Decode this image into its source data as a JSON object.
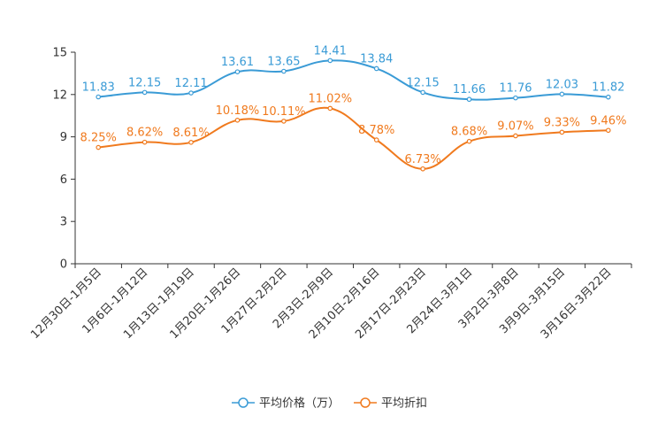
{
  "chart_data": {
    "type": "line",
    "categories": [
      "12月30日-1月5日",
      "1月6日-1月12日",
      "1月13日-1月19日",
      "1月20日-1月26日",
      "1月27日-2月2日",
      "2月3日-2月9日",
      "2月10日-2月16日",
      "2月17日-2月23日",
      "2月24日-3月1日",
      "3月2日-3月8日",
      "3月9日-3月15日",
      "3月16日-3月22日"
    ],
    "yticks": [
      "0",
      "3",
      "6",
      "9",
      "12",
      "15"
    ],
    "ylim": [
      0,
      15
    ],
    "series": [
      {
        "name": "平均价格（万）",
        "color": "#3a9bd6",
        "values": [
          11.83,
          12.15,
          12.11,
          13.61,
          13.65,
          14.41,
          13.84,
          12.15,
          11.66,
          11.76,
          12.03,
          11.82
        ],
        "labels": [
          "11.83",
          "12.15",
          "12.11",
          "13.61",
          "13.65",
          "14.41",
          "13.84",
          "12.15",
          "11.66",
          "11.76",
          "12.03",
          "11.82"
        ]
      },
      {
        "name": "平均折扣",
        "color": "#f07a1e",
        "values": [
          8.25,
          8.62,
          8.61,
          10.18,
          10.11,
          11.02,
          8.78,
          6.73,
          8.68,
          9.07,
          9.33,
          9.46
        ],
        "labels": [
          "8.25%",
          "8.62%",
          "8.61%",
          "10.18%",
          "10.11%",
          "11.02%",
          "8.78%",
          "6.73%",
          "8.68%",
          "9.07%",
          "9.33%",
          "9.46%"
        ]
      }
    ],
    "legend": {
      "position": "bottom-center"
    }
  }
}
